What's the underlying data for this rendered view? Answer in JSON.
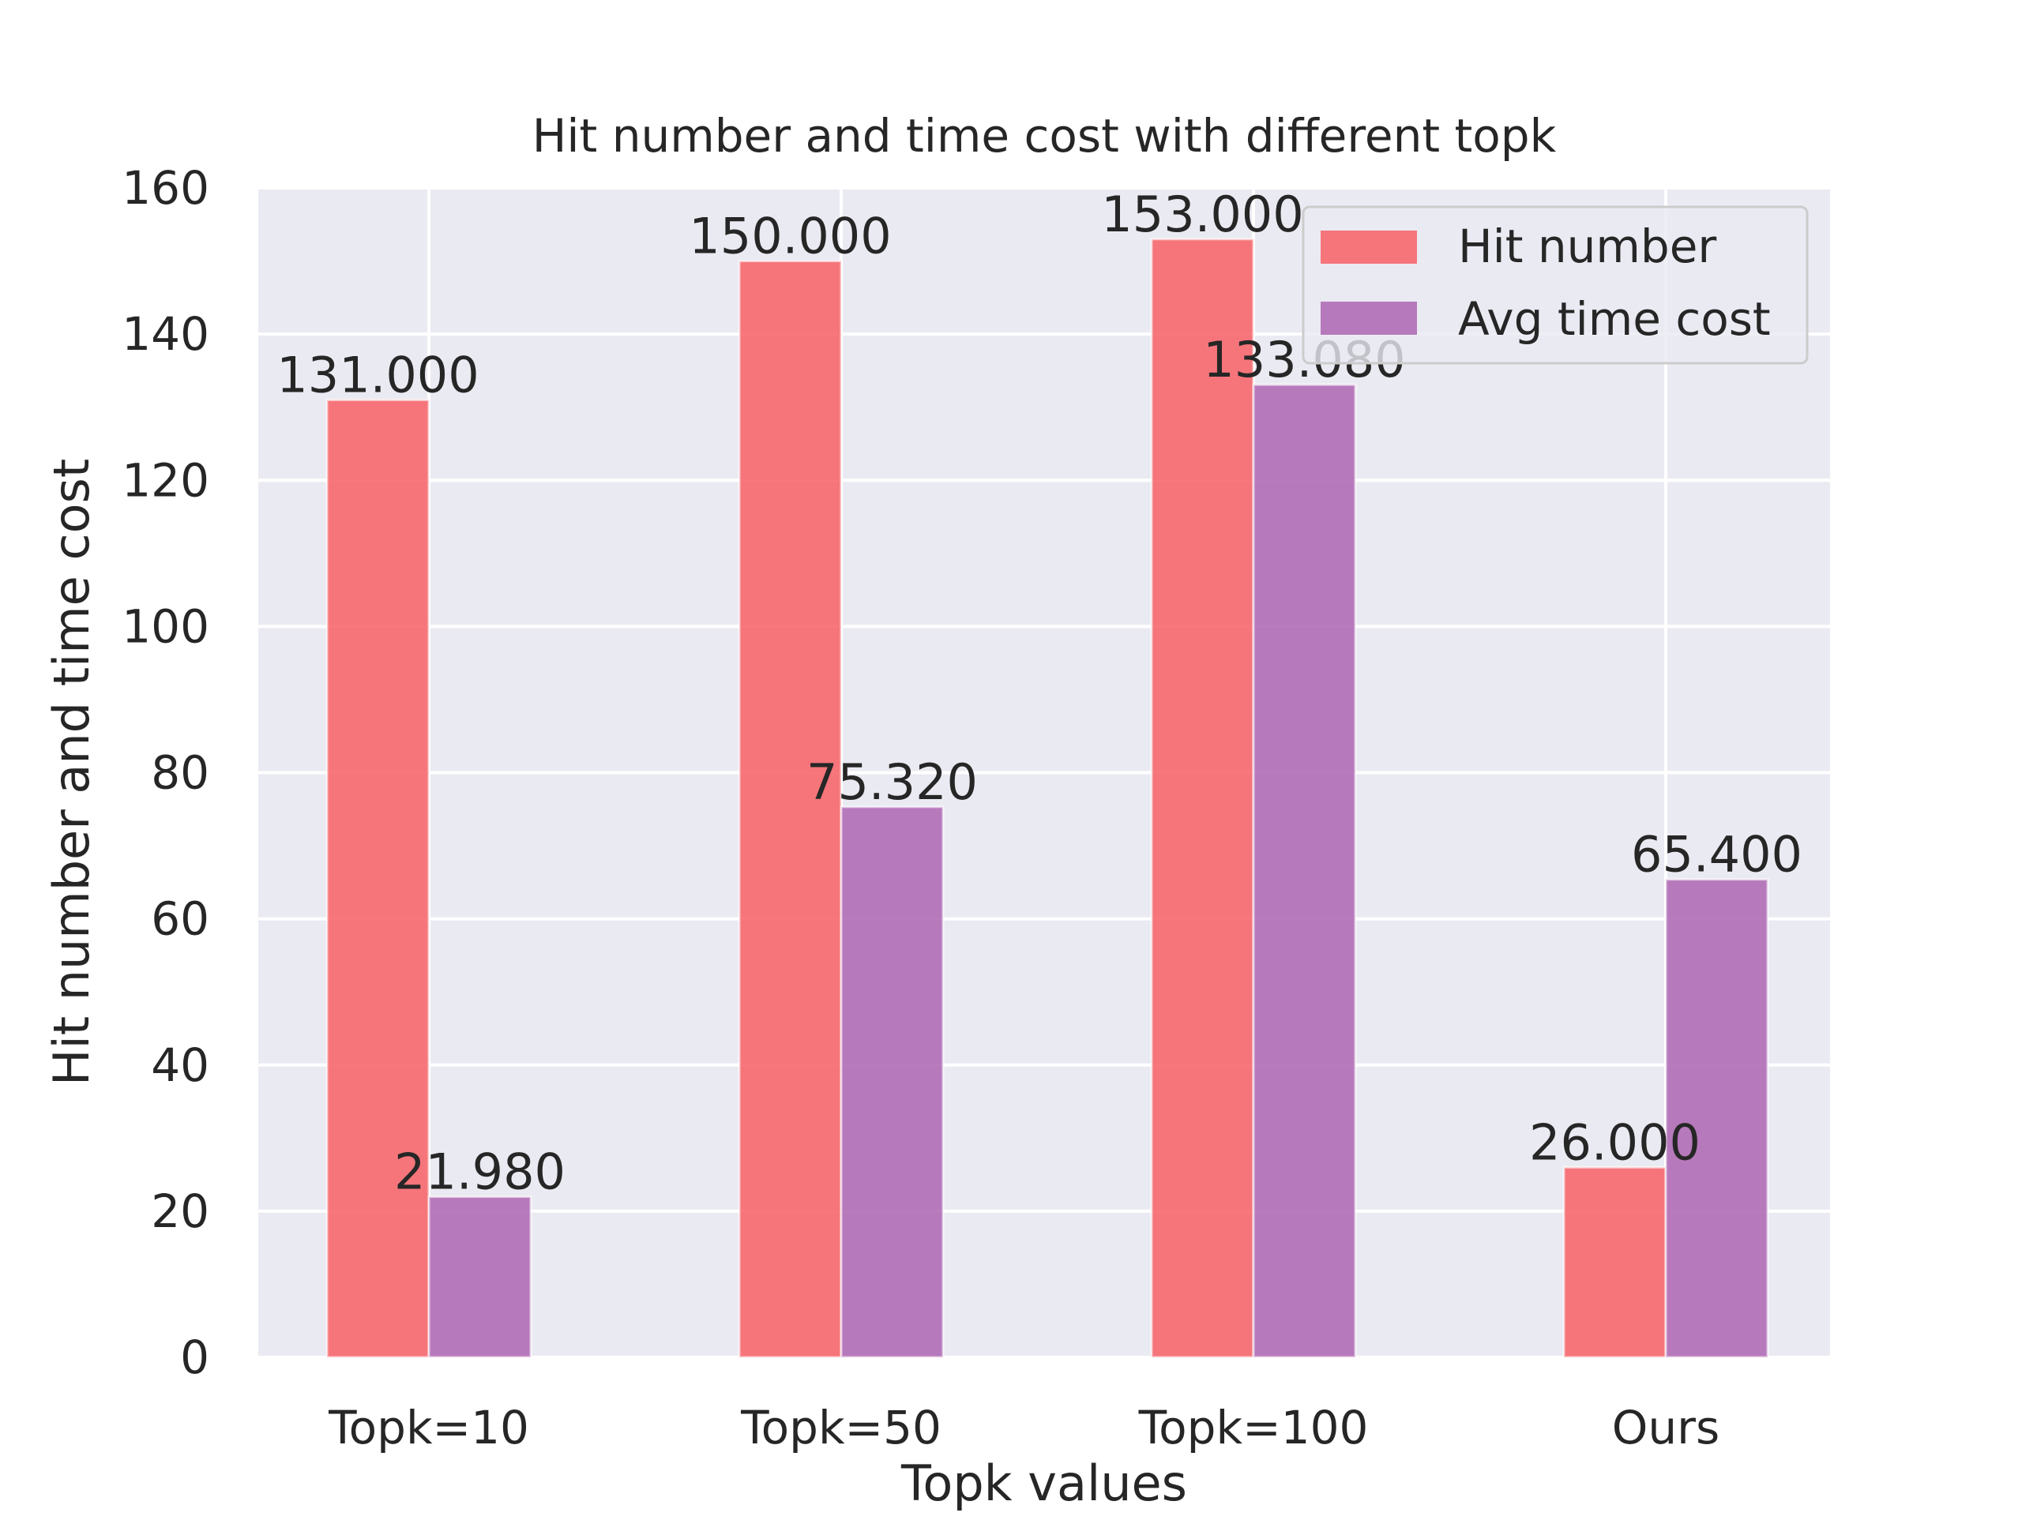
{
  "chart_data": {
    "type": "bar",
    "title": "Hit number and time cost with different topk",
    "xlabel": "Topk values",
    "ylabel": "Hit number and time cost",
    "categories": [
      "Topk=10",
      "Topk=50",
      "Topk=100",
      "Ours"
    ],
    "series": [
      {
        "name": "Hit number",
        "values": [
          131.0,
          150.0,
          153.0,
          26.0
        ],
        "labels": [
          "131.000",
          "150.000",
          "153.000",
          "26.000"
        ],
        "color": "#f6686e"
      },
      {
        "name": "Avg time cost",
        "values": [
          21.98,
          75.32,
          133.08,
          65.4
        ],
        "labels": [
          "21.980",
          "75.320",
          "133.080",
          "65.400"
        ],
        "color": "#b06db5"
      }
    ],
    "ylim": [
      0,
      160
    ],
    "yticks": [
      0,
      20,
      40,
      60,
      80,
      100,
      120,
      140,
      160
    ],
    "grid": true,
    "legend_position": "top-right",
    "background": "#eaeaf2"
  }
}
